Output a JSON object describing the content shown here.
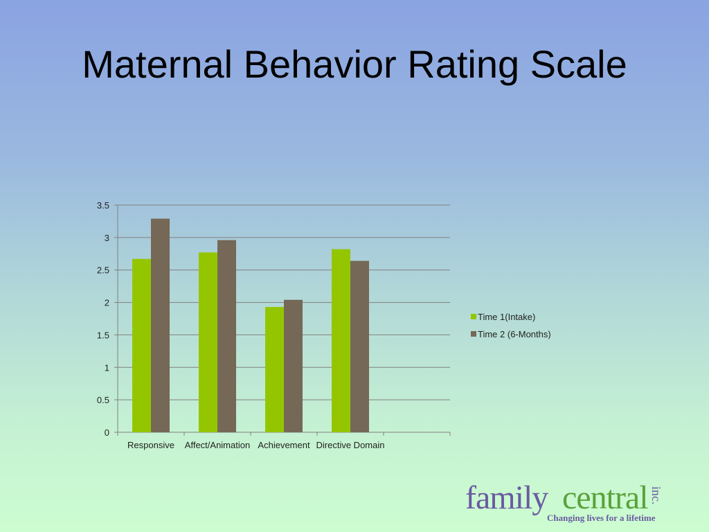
{
  "slide": {
    "title": "Maternal Behavior Rating Scale"
  },
  "colors": {
    "series1": "#94c600",
    "series2": "#756857",
    "gridline": "#808080",
    "logo_purple": "#6b5aa2",
    "logo_green": "#5aa23a"
  },
  "logo": {
    "word1": "family",
    "word2": "central",
    "suffix": "inc.",
    "tagline": "Changing lives for a lifetime"
  },
  "chart_data": {
    "type": "bar",
    "categories": [
      "Responsive",
      "Affect/Animation",
      "Achievement",
      "Directive Domain"
    ],
    "series": [
      {
        "name": "Time 1(Intake)",
        "values": [
          2.67,
          2.77,
          1.93,
          2.82
        ]
      },
      {
        "name": "Time 2 (6-Months)",
        "values": [
          3.29,
          2.96,
          2.04,
          2.64
        ]
      }
    ],
    "yticks": [
      "0",
      "0.5",
      "1",
      "1.5",
      "2",
      "2.5",
      "3",
      "3.5"
    ],
    "ylim": [
      0,
      3.5
    ],
    "grid": true,
    "legend_position": "right"
  }
}
